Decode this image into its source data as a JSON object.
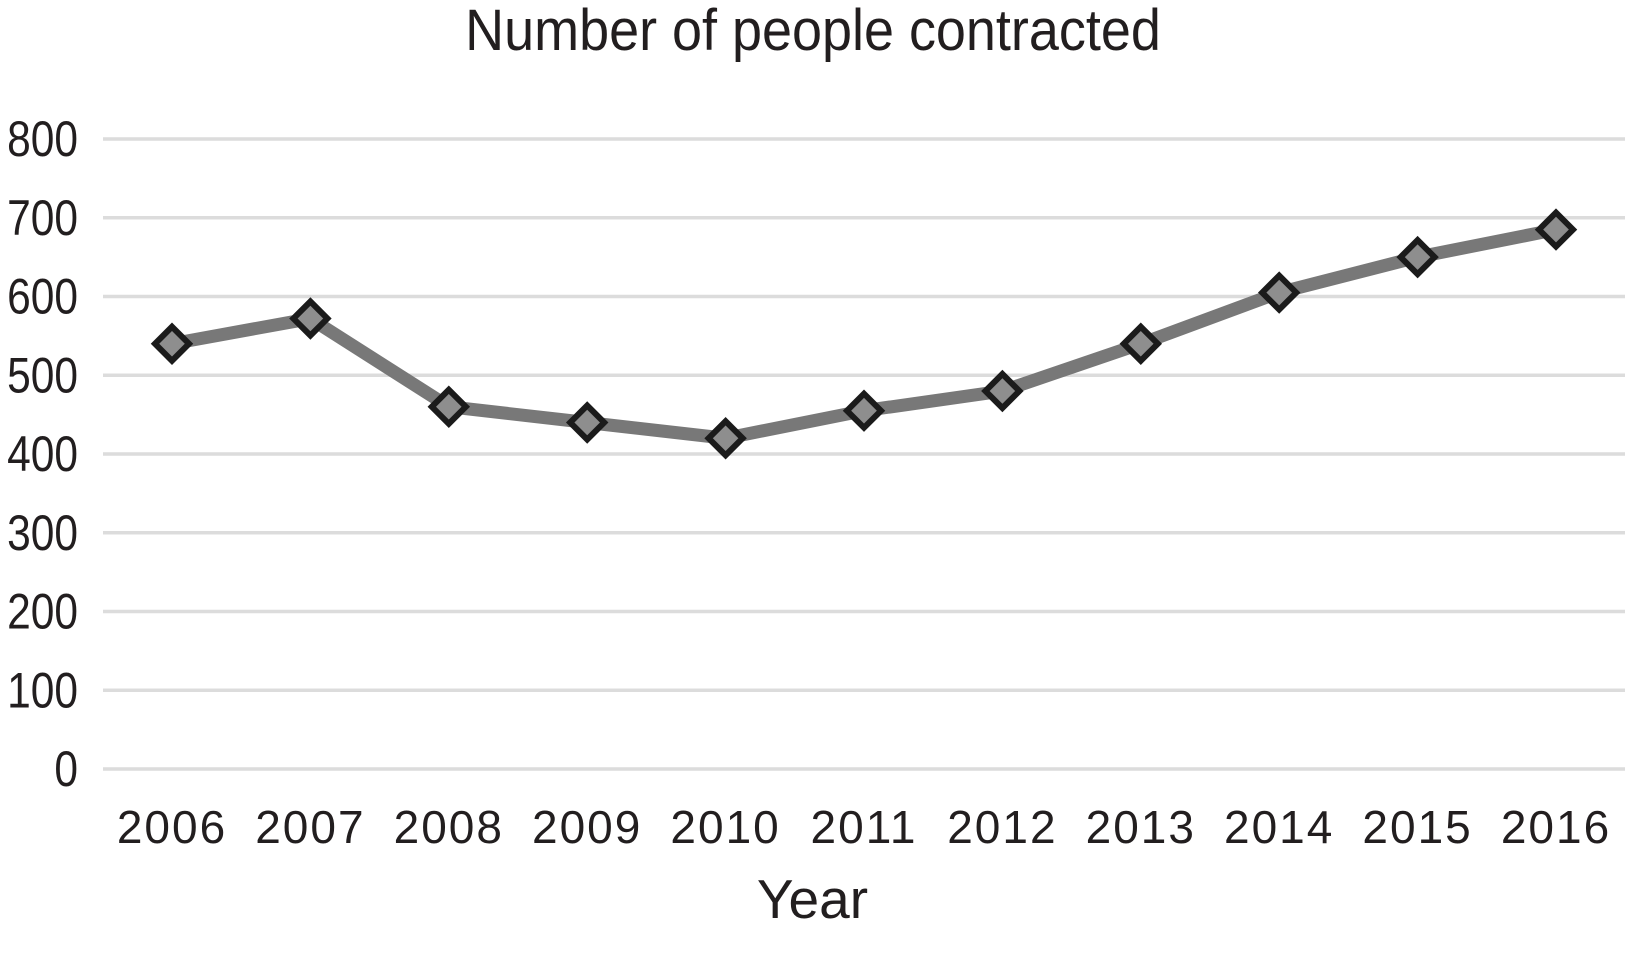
{
  "chart_data": {
    "type": "line",
    "title": "Number of people contracted",
    "xlabel": "Year",
    "ylabel": "",
    "categories": [
      "2006",
      "2007",
      "2008",
      "2009",
      "2010",
      "2011",
      "2012",
      "2013",
      "2014",
      "2015",
      "2016"
    ],
    "series": [
      {
        "name": "Number of people contracted",
        "values": [
          540,
          572,
          460,
          440,
          420,
          455,
          480,
          540,
          605,
          650,
          685
        ]
      }
    ],
    "ylim": [
      0,
      800
    ],
    "yticks": [
      0,
      100,
      200,
      300,
      400,
      500,
      600,
      700,
      800
    ],
    "grid": "horizontal",
    "legend_position": "none",
    "marker_shape": "diamond",
    "colors": {
      "line": "#787878",
      "marker_fill": "#8e8e8e",
      "marker_border": "#1b1b1b",
      "gridline": "#dcdcdc",
      "text": "#221e1f",
      "background": "#ffffff"
    }
  }
}
